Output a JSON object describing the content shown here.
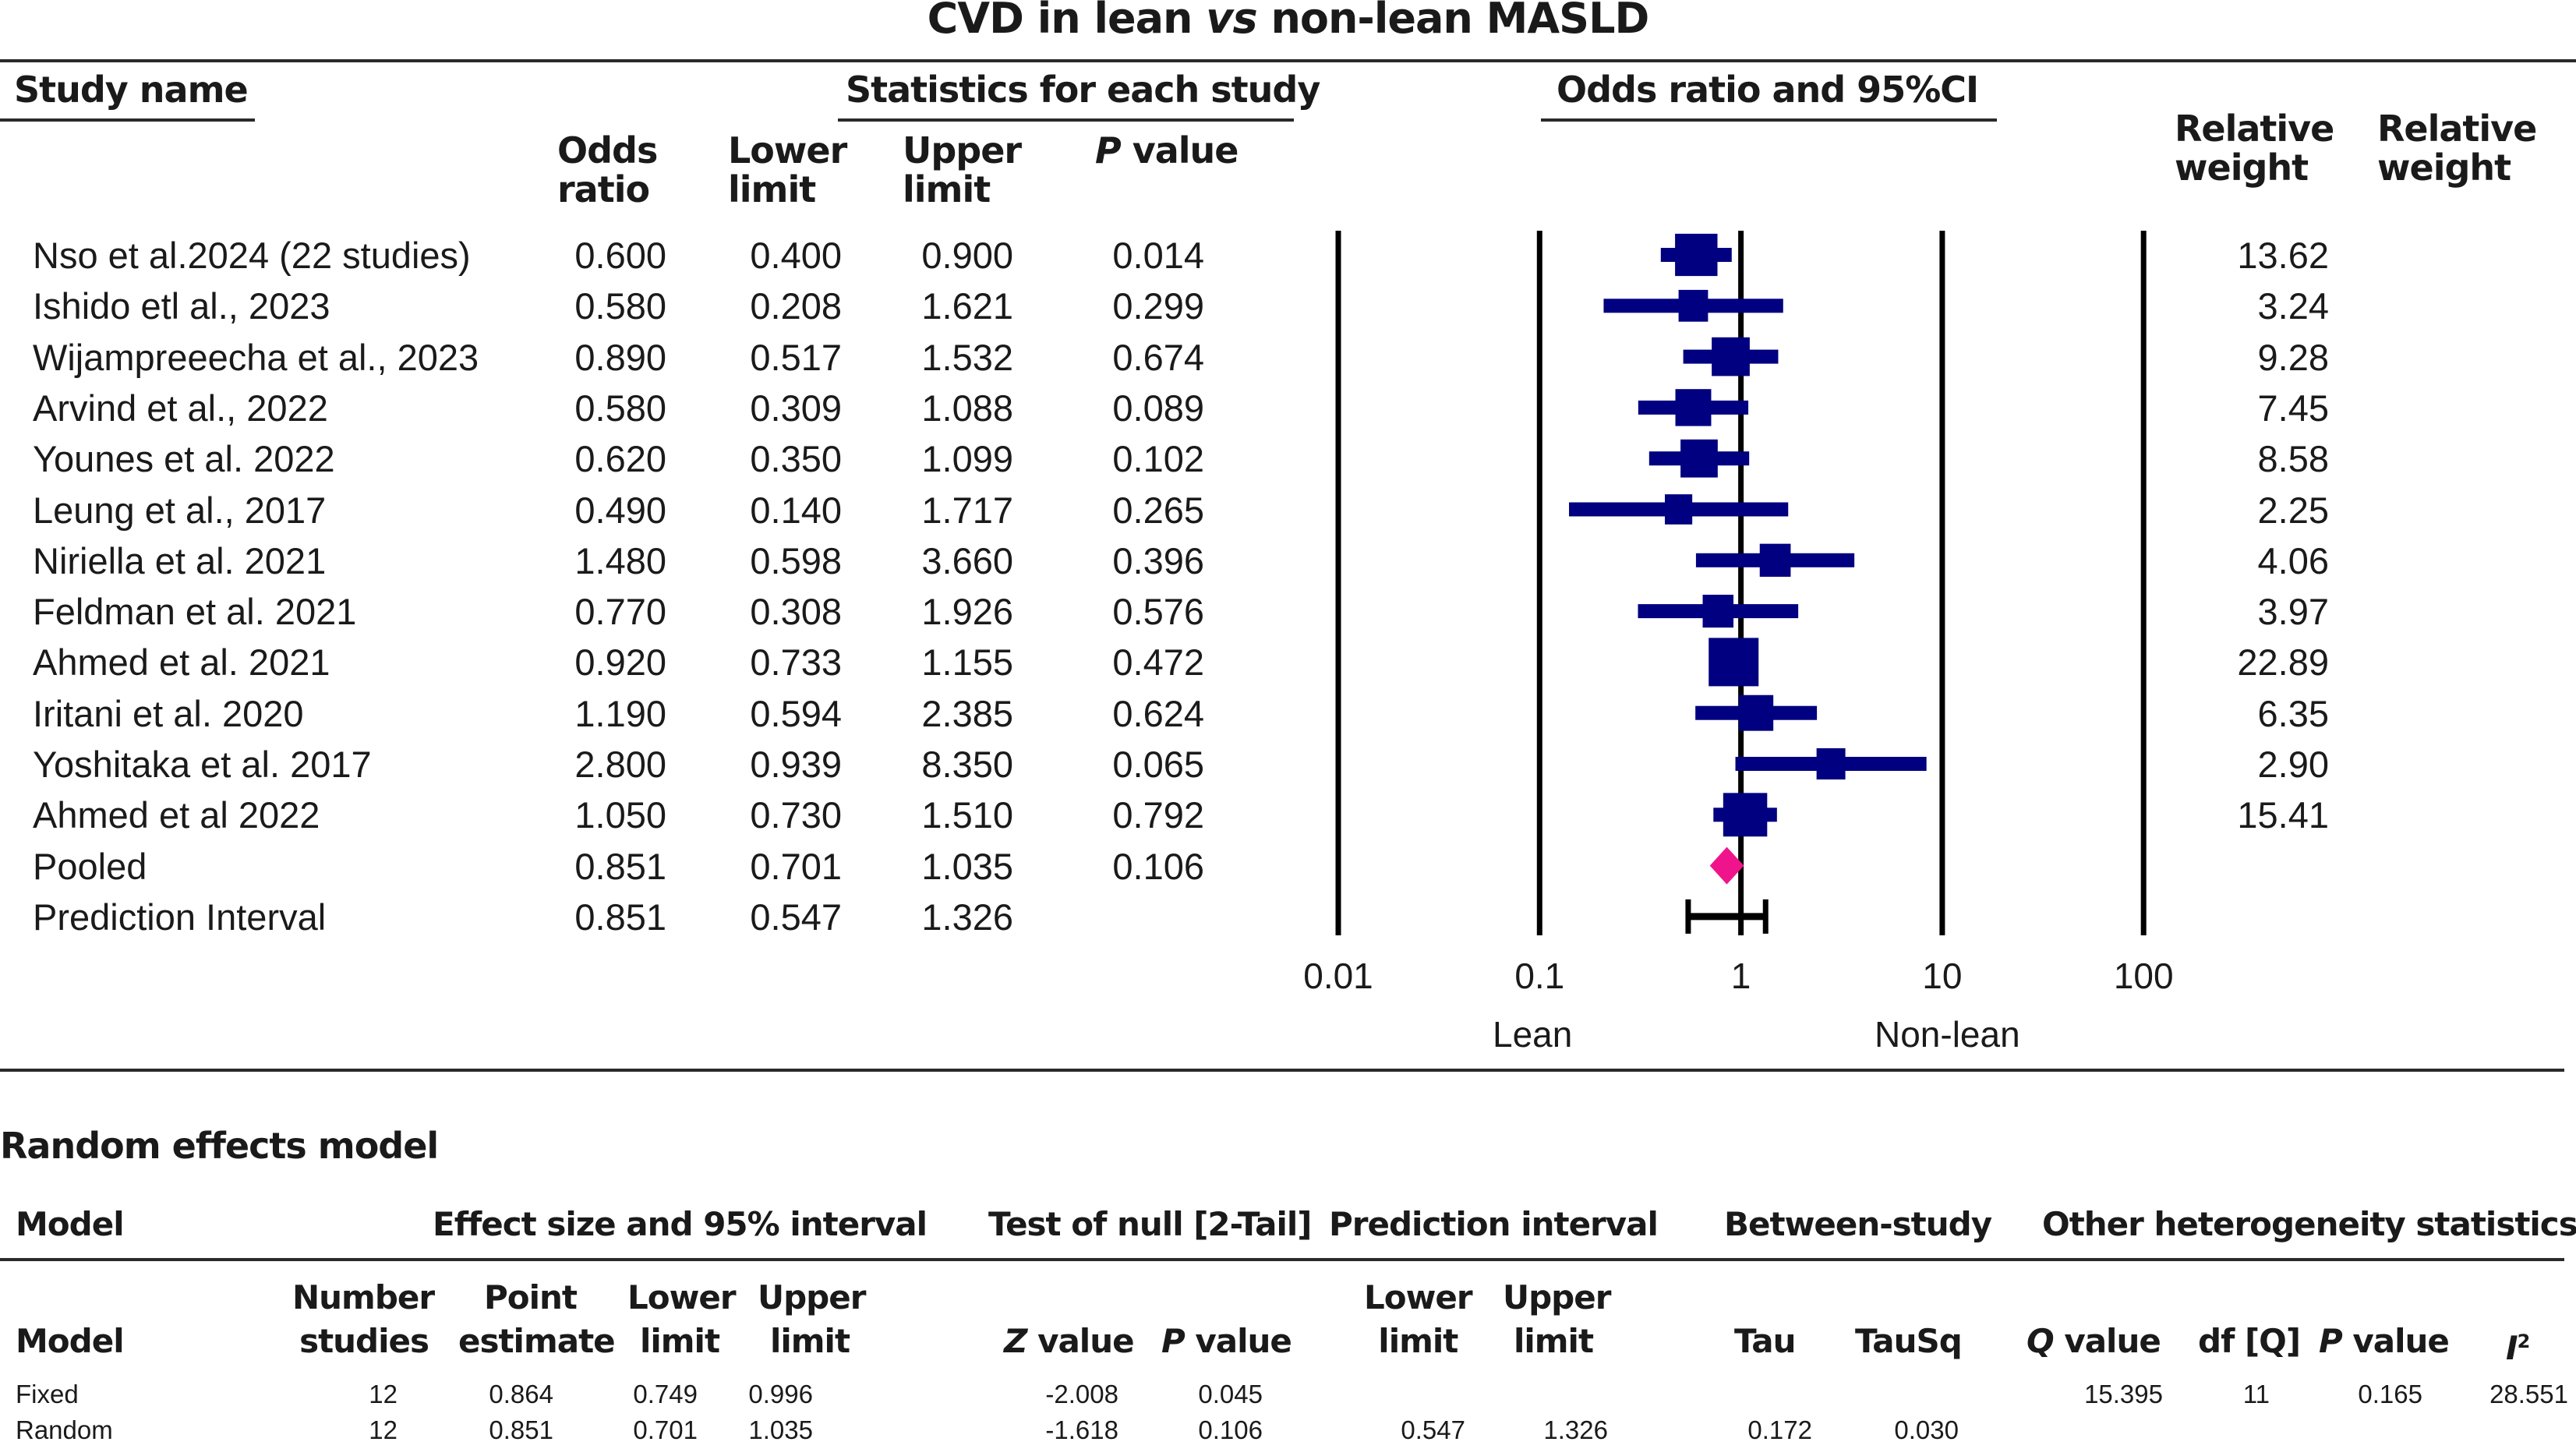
{
  "chart_data": {
    "type": "forest",
    "title_parts": [
      "CVD in lean ",
      "vs",
      " non-lean MASLD"
    ],
    "column_groups": {
      "study_name": "Study name",
      "statistics": "Statistics for each study",
      "plot": "Odds ratio and 95%CI"
    },
    "columns": {
      "odds_ratio": [
        "Odds",
        "ratio"
      ],
      "lower": [
        "Lower",
        "limit"
      ],
      "upper": [
        "Upper",
        "limit"
      ],
      "p_value": [
        "P",
        " value"
      ],
      "weight1": [
        "Relative",
        "weight"
      ],
      "weight2": [
        "Relative",
        "weight"
      ]
    },
    "studies": [
      {
        "name": "Nso et al.2024 (22 studies)",
        "or": "0.600",
        "lower": "0.400",
        "upper": "0.900",
        "p": "0.014",
        "weight": "13.62"
      },
      {
        "name": "Ishido etl al., 2023",
        "or": "0.580",
        "lower": "0.208",
        "upper": "1.621",
        "p": "0.299",
        "weight": "3.24"
      },
      {
        "name": "Wijampreeecha et al., 2023",
        "or": "0.890",
        "lower": "0.517",
        "upper": "1.532",
        "p": "0.674",
        "weight": "9.28"
      },
      {
        "name": "Arvind et al., 2022",
        "or": "0.580",
        "lower": "0.309",
        "upper": "1.088",
        "p": "0.089",
        "weight": "7.45"
      },
      {
        "name": "Younes et al. 2022",
        "or": "0.620",
        "lower": "0.350",
        "upper": "1.099",
        "p": "0.102",
        "weight": "8.58"
      },
      {
        "name": "Leung et al., 2017",
        "or": "0.490",
        "lower": "0.140",
        "upper": "1.717",
        "p": "0.265",
        "weight": "2.25"
      },
      {
        "name": "Niriella et al. 2021",
        "or": "1.480",
        "lower": "0.598",
        "upper": "3.660",
        "p": "0.396",
        "weight": "4.06"
      },
      {
        "name": "Feldman et al. 2021",
        "or": "0.770",
        "lower": "0.308",
        "upper": "1.926",
        "p": "0.576",
        "weight": "3.97"
      },
      {
        "name": "Ahmed et al. 2021",
        "or": "0.920",
        "lower": "0.733",
        "upper": "1.155",
        "p": "0.472",
        "weight": "22.89"
      },
      {
        "name": "Iritani et al. 2020",
        "or": "1.190",
        "lower": "0.594",
        "upper": "2.385",
        "p": "0.624",
        "weight": "6.35"
      },
      {
        "name": "Yoshitaka et al. 2017",
        "or": "2.800",
        "lower": "0.939",
        "upper": "8.350",
        "p": "0.065",
        "weight": "2.90"
      },
      {
        "name": "Ahmed et al 2022",
        "or": "1.050",
        "lower": "0.730",
        "upper": "1.510",
        "p": "0.792",
        "weight": "15.41"
      }
    ],
    "pooled": {
      "name": "Pooled",
      "or": "0.851",
      "lower": "0.701",
      "upper": "1.035",
      "p": "0.106"
    },
    "prediction_interval": {
      "name": "Prediction Interval",
      "or": "0.851",
      "lower": "0.547",
      "upper": "1.326"
    },
    "x_scale": "log",
    "xlim": [
      0.01,
      100
    ],
    "x_ticks": [
      "0.01",
      "0.1",
      "1",
      "10",
      "100"
    ],
    "x_tick_values": [
      0.01,
      0.1,
      1,
      10,
      100
    ],
    "direction_labels": {
      "left": "Lean",
      "right": "Non-lean"
    },
    "colors": {
      "study_marker": "#000080",
      "pooled_diamond": "#f0148c",
      "prediction": "#000000",
      "gridline": "#000000"
    }
  },
  "summary": {
    "section_title": "Random effects model",
    "group_headers": {
      "model": "Model",
      "effect": "Effect size and 95% interval",
      "null_test": "Test of null [2-Tail]",
      "prediction": "Prediction interval",
      "between": "Between-study",
      "heterogeneity": "Other heterogeneity statistics"
    },
    "col_headers": {
      "model": "Model",
      "n_studies": [
        "Number",
        "studies"
      ],
      "point": [
        "Point",
        "estimate"
      ],
      "lower": [
        "Lower",
        "limit"
      ],
      "upper": [
        "Upper",
        "limit"
      ],
      "z": [
        "Z",
        " value"
      ],
      "p": [
        "P",
        " value"
      ],
      "pi_lower": [
        "Lower",
        "limit"
      ],
      "pi_upper": [
        "Upper",
        "limit"
      ],
      "tau": "Tau",
      "tausq": "TauSq",
      "q": [
        "Q",
        " value"
      ],
      "df": "df [Q]",
      "het_p": [
        "P",
        " value"
      ],
      "i2": [
        "I",
        "2"
      ]
    },
    "rows": [
      {
        "model": "Fixed",
        "n": "12",
        "point": "0.864",
        "lower": "0.749",
        "upper": "0.996",
        "z": "-2.008",
        "p": "0.045",
        "pi_lower": "",
        "pi_upper": "",
        "tau": "",
        "tausq": "",
        "q": "15.395",
        "df": "11",
        "het_p": "0.165",
        "i2": "28.551"
      },
      {
        "model": "Random",
        "n": "12",
        "point": "0.851",
        "lower": "0.701",
        "upper": "1.035",
        "z": "-1.618",
        "p": "0.106",
        "pi_lower": "0.547",
        "pi_upper": "1.326",
        "tau": "0.172",
        "tausq": "0.030",
        "q": "",
        "df": "",
        "het_p": "",
        "i2": ""
      }
    ]
  }
}
